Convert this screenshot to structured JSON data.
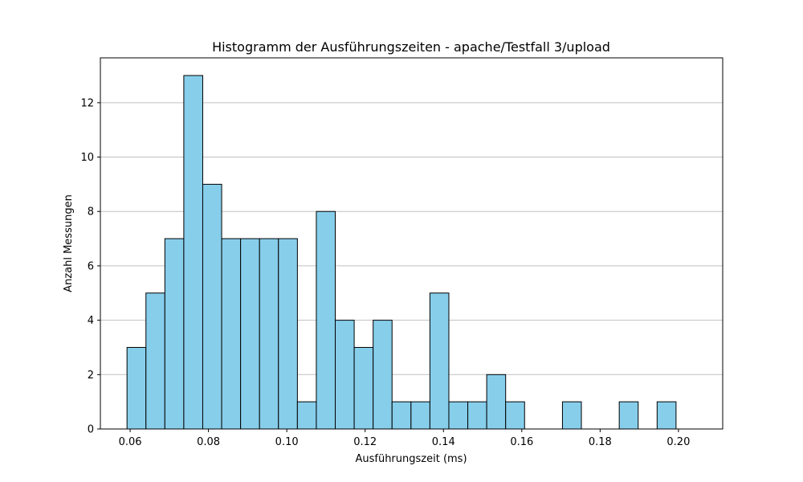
{
  "chart_data": {
    "type": "bar",
    "title": "Histogramm der Ausführungszeiten - apache/Testfall 3/upload",
    "xlabel": "Ausführungszeit (ms)",
    "ylabel": "Anzahl Messungen",
    "xlim": [
      0.0524,
      0.2113
    ],
    "ylim": [
      0,
      13.65
    ],
    "grid": "y",
    "bar_color": "#87ceeb",
    "edge_color": "#000000",
    "grid_color": "#c0c0c0",
    "x_ticks": [
      0.06,
      0.08,
      0.1,
      0.12,
      0.14,
      0.16,
      0.18,
      0.2
    ],
    "x_tick_labels": [
      "0.06",
      "0.08",
      "0.10",
      "0.12",
      "0.14",
      "0.16",
      "0.18",
      "0.20"
    ],
    "y_ticks": [
      0,
      2,
      4,
      6,
      8,
      10,
      12
    ],
    "y_tick_labels": [
      "0",
      "2",
      "4",
      "6",
      "8",
      "10",
      "12"
    ],
    "bin_start": 0.0592,
    "bin_width": 0.004834,
    "counts": [
      3,
      5,
      7,
      13,
      9,
      7,
      7,
      7,
      7,
      1,
      8,
      4,
      3,
      4,
      1,
      1,
      5,
      1,
      1,
      2,
      1,
      0,
      0,
      1,
      0,
      0,
      1,
      0,
      1
    ]
  }
}
